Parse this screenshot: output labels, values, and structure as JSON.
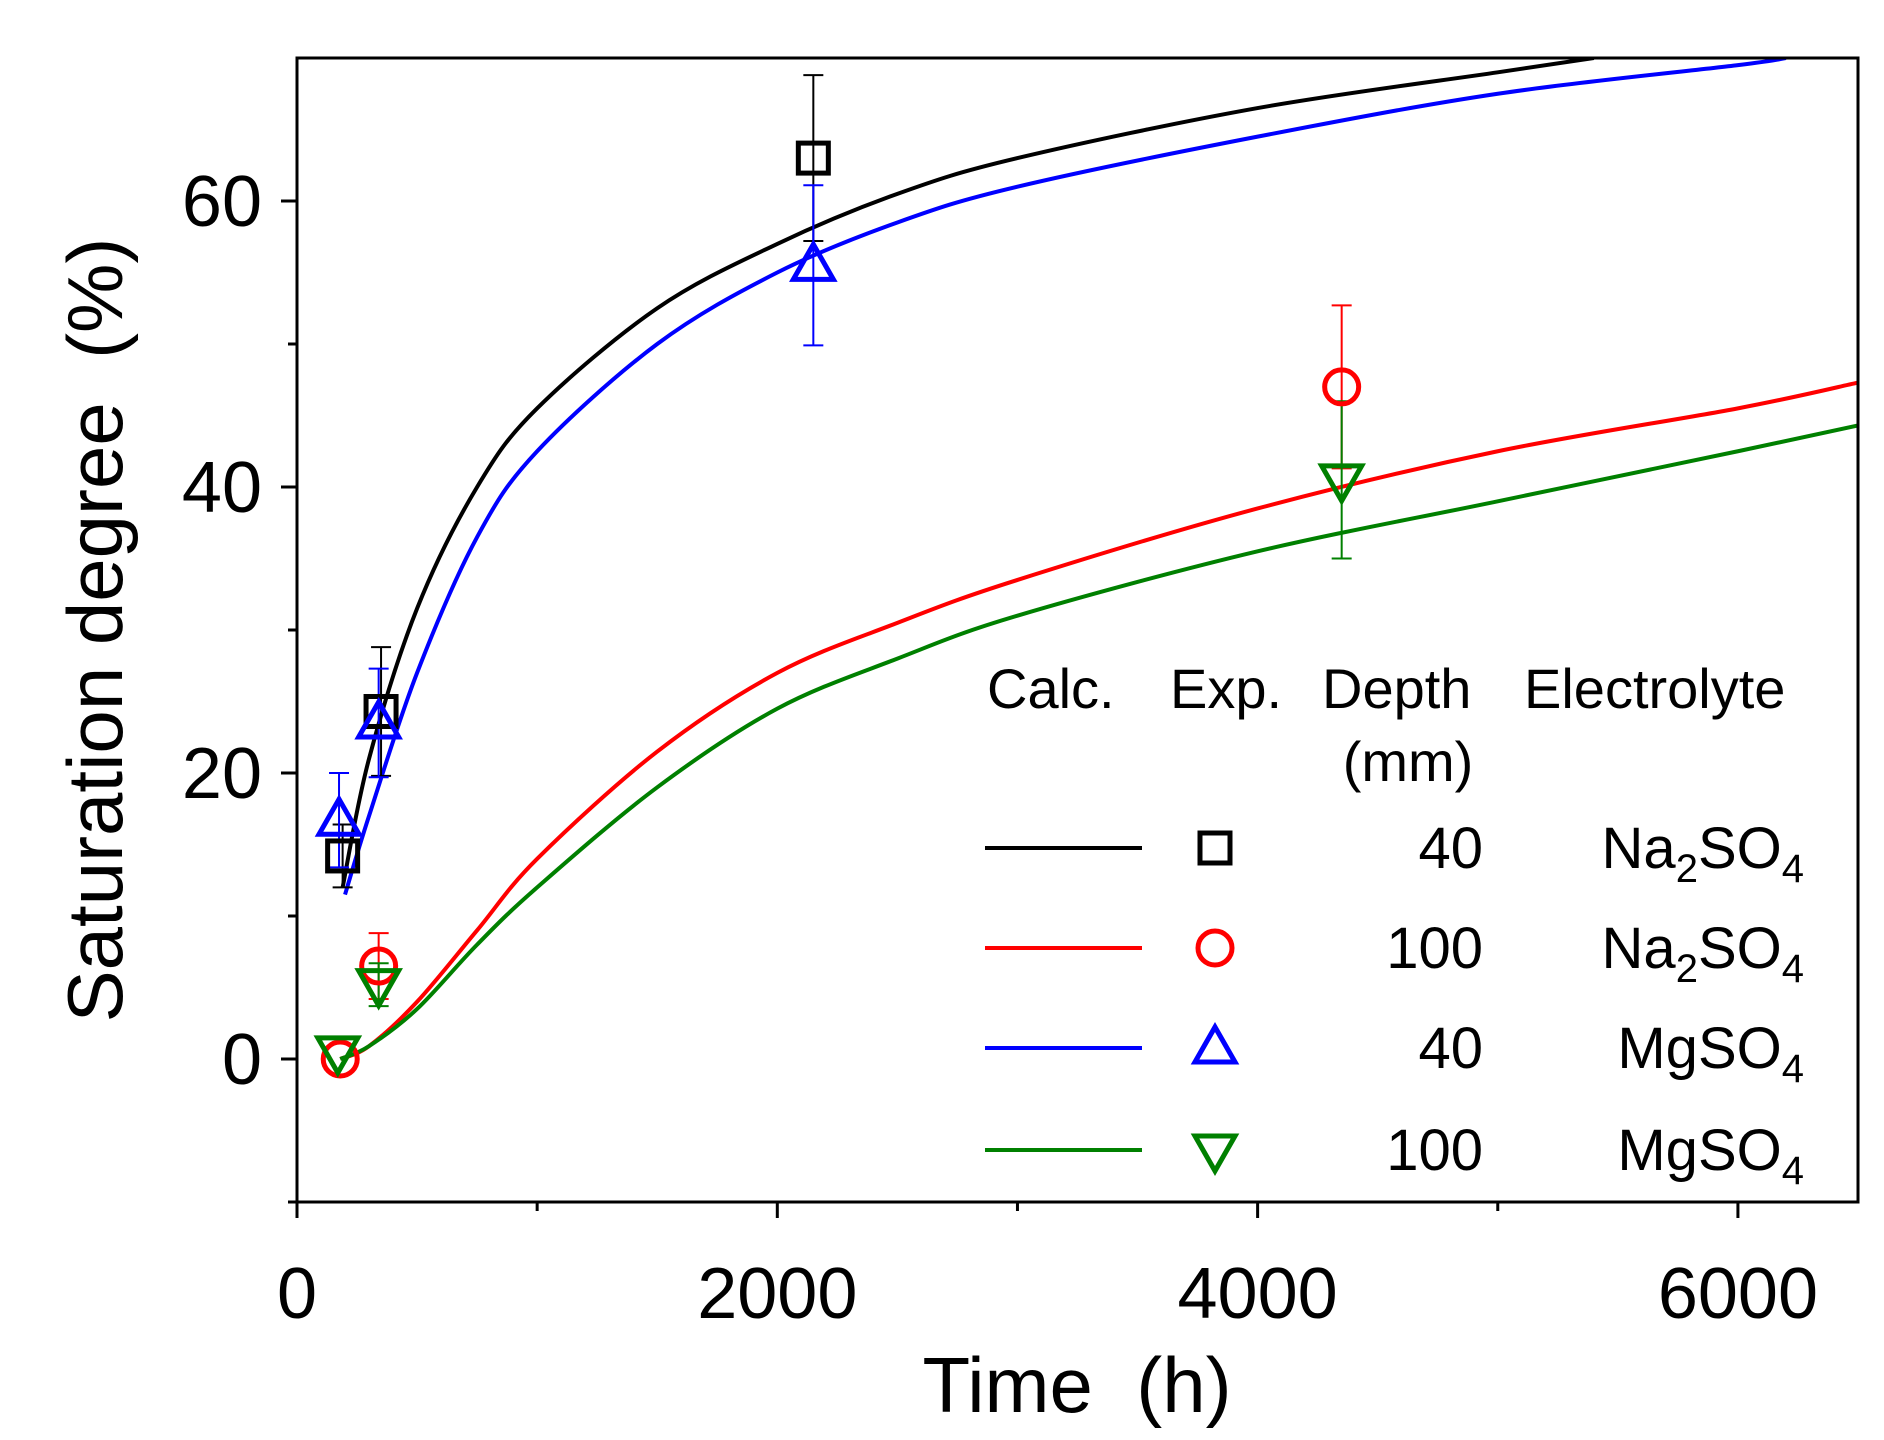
{
  "chart_data": {
    "type": "scatter",
    "xlabel": "Time  (h)",
    "ylabel": "Saturation degree  (%)",
    "xlim": [
      0,
      6500
    ],
    "ylim": [
      -10,
      70
    ],
    "x_ticks": [
      "0",
      "2000",
      "4000",
      "6000"
    ],
    "y_ticks": [
      "0",
      "20",
      "40",
      "60"
    ],
    "x_tick_values": [
      0,
      2000,
      4000,
      6000
    ],
    "y_tick_values": [
      0,
      20,
      40,
      60
    ],
    "x_minor_values": [
      1000,
      3000,
      5000
    ],
    "y_minor_values": [
      -10,
      10,
      30,
      50
    ],
    "grid": false,
    "legend": {
      "position": "bottom-right",
      "headers": [
        "Calc.",
        "Exp.",
        "Depth",
        "Electrolyte"
      ],
      "unit": "(mm)"
    },
    "series": [
      {
        "depth": "40",
        "electrolyte": "Na",
        "sub1": "2",
        "mid": "SO",
        "sub2": "4",
        "color": "#000000",
        "marker": "square",
        "points": [
          {
            "x": 190,
            "y": 14.2,
            "err": 2.2
          },
          {
            "x": 350,
            "y": 24.3,
            "err": 4.5
          },
          {
            "x": 2150,
            "y": 63,
            "err": 5.8
          }
        ],
        "curve": [
          [
            190,
            12
          ],
          [
            300,
            21
          ],
          [
            500,
            31.5
          ],
          [
            750,
            40
          ],
          [
            1000,
            45.5
          ],
          [
            1500,
            52.5
          ],
          [
            2000,
            57
          ],
          [
            2500,
            60.5
          ],
          [
            3000,
            63
          ],
          [
            4000,
            66.5
          ],
          [
            5000,
            69
          ],
          [
            5400,
            70
          ]
        ]
      },
      {
        "depth": "100",
        "electrolyte": "Na",
        "sub1": "2",
        "mid": "SO",
        "sub2": "4",
        "color": "#ff0000",
        "marker": "circle",
        "points": [
          {
            "x": 180,
            "y": 0,
            "err": 0
          },
          {
            "x": 340,
            "y": 6.5,
            "err": 2.3
          },
          {
            "x": 4350,
            "y": 47,
            "err": 5.7
          }
        ],
        "curve": [
          [
            180,
            0
          ],
          [
            300,
            0.9
          ],
          [
            500,
            4
          ],
          [
            750,
            9
          ],
          [
            1000,
            14
          ],
          [
            1500,
            21.5
          ],
          [
            2000,
            27
          ],
          [
            2500,
            30.5
          ],
          [
            3000,
            33.5
          ],
          [
            4000,
            38.5
          ],
          [
            5000,
            42.5
          ],
          [
            6000,
            45.5
          ],
          [
            6500,
            47.3
          ]
        ]
      },
      {
        "depth": "40",
        "electrolyte": "Mg",
        "sub1": "",
        "mid": "SO",
        "sub2": "4",
        "color": "#0000ff",
        "marker": "triangle-up",
        "points": [
          {
            "x": 175,
            "y": 16.7,
            "err": 3.3
          },
          {
            "x": 340,
            "y": 23.5,
            "err": 3.8
          },
          {
            "x": 2150,
            "y": 55.5,
            "err": 5.6
          }
        ],
        "curve": [
          [
            200,
            11.5
          ],
          [
            300,
            17
          ],
          [
            500,
            27
          ],
          [
            750,
            36.5
          ],
          [
            1000,
            42.5
          ],
          [
            1500,
            50
          ],
          [
            2000,
            55
          ],
          [
            2500,
            58.5
          ],
          [
            3000,
            61
          ],
          [
            4000,
            64.5
          ],
          [
            5000,
            67.5
          ],
          [
            6000,
            69.5
          ],
          [
            6200,
            70
          ]
        ]
      },
      {
        "depth": "100",
        "electrolyte": "Mg",
        "sub1": "",
        "mid": "SO",
        "sub2": "4",
        "color": "#008000",
        "marker": "triangle-down",
        "points": [
          {
            "x": 170,
            "y": 0.5,
            "err": 0
          },
          {
            "x": 340,
            "y": 5.2,
            "err": 1.5
          },
          {
            "x": 4350,
            "y": 40.5,
            "err": 5.5
          }
        ],
        "curve": [
          [
            180,
            0
          ],
          [
            300,
            0.9
          ],
          [
            500,
            3.5
          ],
          [
            750,
            8
          ],
          [
            1000,
            12
          ],
          [
            1500,
            19
          ],
          [
            2000,
            24.5
          ],
          [
            2500,
            28
          ],
          [
            3000,
            31
          ],
          [
            4000,
            35.5
          ],
          [
            5000,
            39
          ],
          [
            6000,
            42.5
          ],
          [
            6500,
            44.3
          ]
        ]
      }
    ]
  }
}
